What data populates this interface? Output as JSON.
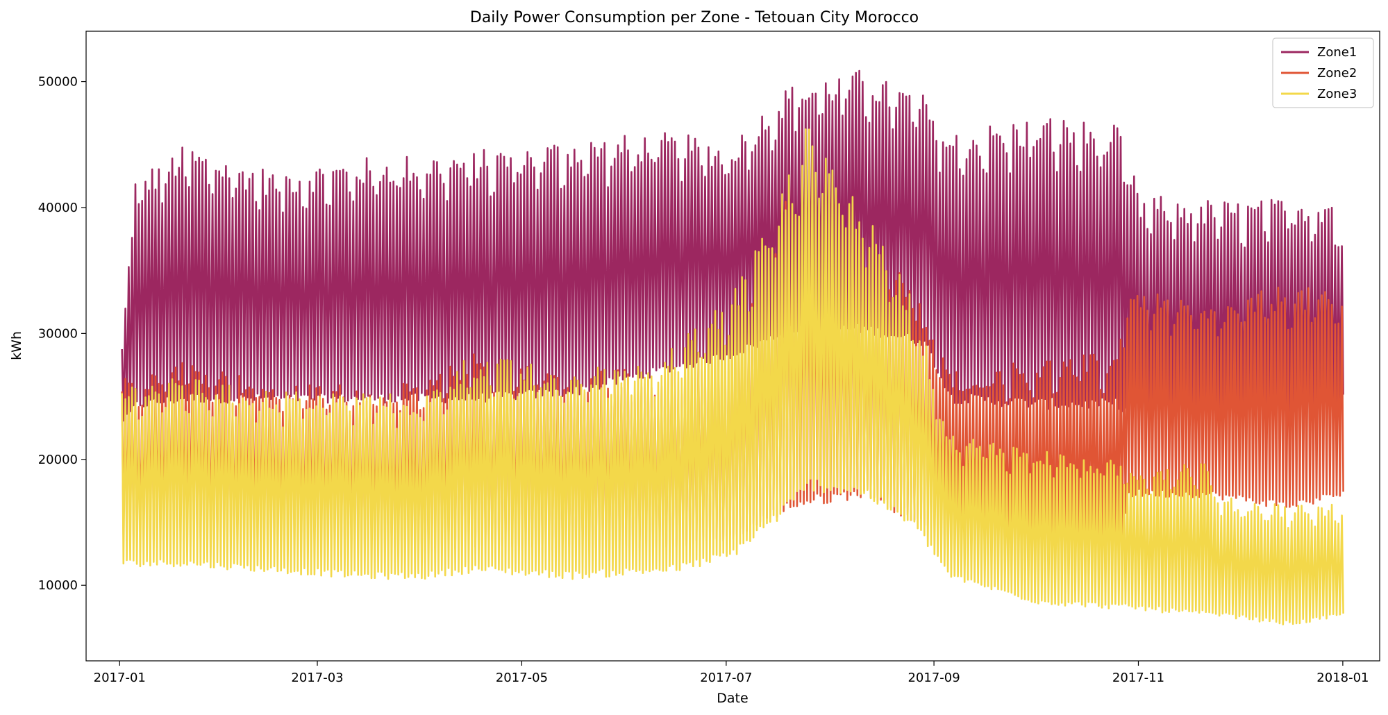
{
  "chart_data": {
    "type": "line",
    "title": "Daily Power Consumption per Zone - Tetouan City Morocco",
    "xlabel": "Date",
    "ylabel": "kWh",
    "x_range": [
      "2016-12-22",
      "2018-01-12"
    ],
    "ylim": [
      4000,
      54000
    ],
    "x_ticks": [
      {
        "date": "2017-01-01",
        "label": "2017-01"
      },
      {
        "date": "2017-03-01",
        "label": "2017-03"
      },
      {
        "date": "2017-05-01",
        "label": "2017-05"
      },
      {
        "date": "2017-07-01",
        "label": "2017-07"
      },
      {
        "date": "2017-09-01",
        "label": "2017-09"
      },
      {
        "date": "2017-11-01",
        "label": "2017-11"
      },
      {
        "date": "2018-01-01",
        "label": "2018-01"
      }
    ],
    "y_ticks": [
      10000,
      20000,
      30000,
      40000,
      50000
    ],
    "y_tick_labels": [
      "10000",
      "20000",
      "30000",
      "40000",
      "50000"
    ],
    "legend_position": "top-right",
    "grid": false,
    "series": [
      {
        "name": "Zone1",
        "color": "#9c2760",
        "envelope": [
          {
            "date": "2017-01-01",
            "min": 23000,
            "max": 29000
          },
          {
            "date": "2017-01-05",
            "min": 24000,
            "max": 42500
          },
          {
            "date": "2017-01-20",
            "min": 24500,
            "max": 45000
          },
          {
            "date": "2017-02-15",
            "min": 24500,
            "max": 43000
          },
          {
            "date": "2017-03-15",
            "min": 24500,
            "max": 44000
          },
          {
            "date": "2017-04-15",
            "min": 24500,
            "max": 44500
          },
          {
            "date": "2017-05-15",
            "min": 25000,
            "max": 45500
          },
          {
            "date": "2017-06-15",
            "min": 27000,
            "max": 46000
          },
          {
            "date": "2017-07-01",
            "min": 28000,
            "max": 45000
          },
          {
            "date": "2017-07-20",
            "min": 30000,
            "max": 50000
          },
          {
            "date": "2017-08-10",
            "min": 30000,
            "max": 51000
          },
          {
            "date": "2017-08-28",
            "min": 29000,
            "max": 49000
          },
          {
            "date": "2017-09-05",
            "min": 24500,
            "max": 46000
          },
          {
            "date": "2017-10-01",
            "min": 24000,
            "max": 47500
          },
          {
            "date": "2017-10-25",
            "min": 24000,
            "max": 46500
          },
          {
            "date": "2017-11-01",
            "min": 22000,
            "max": 41000
          },
          {
            "date": "2017-12-01",
            "min": 22000,
            "max": 40500
          },
          {
            "date": "2017-12-28",
            "min": 22500,
            "max": 41000
          },
          {
            "date": "2017-12-31",
            "min": 25000,
            "max": 38000
          }
        ]
      },
      {
        "name": "Zone2",
        "color": "#e05535",
        "envelope": [
          {
            "date": "2017-01-01",
            "min": 13500,
            "max": 26500
          },
          {
            "date": "2017-01-20",
            "min": 13500,
            "max": 28000
          },
          {
            "date": "2017-02-15",
            "min": 13500,
            "max": 26000
          },
          {
            "date": "2017-03-15",
            "min": 13000,
            "max": 26000
          },
          {
            "date": "2017-04-01",
            "min": 12500,
            "max": 26000
          },
          {
            "date": "2017-04-15",
            "min": 13000,
            "max": 28500
          },
          {
            "date": "2017-05-15",
            "min": 12500,
            "max": 27000
          },
          {
            "date": "2017-06-15",
            "min": 13000,
            "max": 27500
          },
          {
            "date": "2017-07-01",
            "min": 13500,
            "max": 30000
          },
          {
            "date": "2017-07-20",
            "min": 16000,
            "max": 42000
          },
          {
            "date": "2017-08-10",
            "min": 17000,
            "max": 38000
          },
          {
            "date": "2017-08-25",
            "min": 15000,
            "max": 34000
          },
          {
            "date": "2017-09-05",
            "min": 13000,
            "max": 27000
          },
          {
            "date": "2017-10-01",
            "min": 12000,
            "max": 28000
          },
          {
            "date": "2017-10-25",
            "min": 12000,
            "max": 28500
          },
          {
            "date": "2017-10-28",
            "min": 17000,
            "max": 34000
          },
          {
            "date": "2017-11-20",
            "min": 17000,
            "max": 32000
          },
          {
            "date": "2017-12-15",
            "min": 16000,
            "max": 34000
          },
          {
            "date": "2017-12-31",
            "min": 17000,
            "max": 33000
          }
        ]
      },
      {
        "name": "Zone3",
        "color": "#f3d84a",
        "envelope": [
          {
            "date": "2017-01-01",
            "min": 11500,
            "max": 26000
          },
          {
            "date": "2017-01-20",
            "min": 11500,
            "max": 26500
          },
          {
            "date": "2017-02-15",
            "min": 11000,
            "max": 25500
          },
          {
            "date": "2017-03-15",
            "min": 10500,
            "max": 25500
          },
          {
            "date": "2017-04-01",
            "min": 10500,
            "max": 25000
          },
          {
            "date": "2017-04-15",
            "min": 11000,
            "max": 28500
          },
          {
            "date": "2017-05-15",
            "min": 10500,
            "max": 27000
          },
          {
            "date": "2017-06-15",
            "min": 11000,
            "max": 29000
          },
          {
            "date": "2017-07-01",
            "min": 12000,
            "max": 33000
          },
          {
            "date": "2017-07-15",
            "min": 15000,
            "max": 40000
          },
          {
            "date": "2017-07-25",
            "min": 17500,
            "max": 47000
          },
          {
            "date": "2017-08-10",
            "min": 17000,
            "max": 40000
          },
          {
            "date": "2017-08-25",
            "min": 14500,
            "max": 33000
          },
          {
            "date": "2017-09-05",
            "min": 10500,
            "max": 22000
          },
          {
            "date": "2017-10-01",
            "min": 8500,
            "max": 21000
          },
          {
            "date": "2017-11-01",
            "min": 8000,
            "max": 19500
          },
          {
            "date": "2017-11-20",
            "min": 7500,
            "max": 20000
          },
          {
            "date": "2017-11-25",
            "min": 7500,
            "max": 17000
          },
          {
            "date": "2017-12-15",
            "min": 6800,
            "max": 16500
          },
          {
            "date": "2017-12-31",
            "min": 7500,
            "max": 16500
          }
        ]
      }
    ]
  }
}
